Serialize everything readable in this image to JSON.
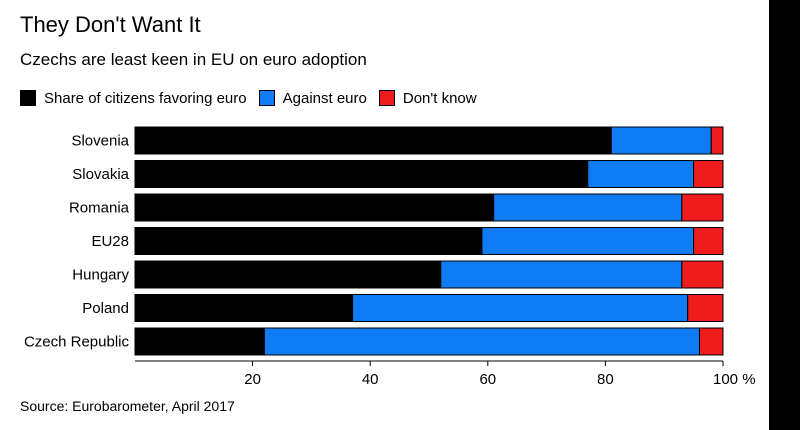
{
  "chart_data": {
    "type": "bar",
    "orientation": "horizontal",
    "stacked": true,
    "title": "They Don't Want It",
    "subtitle": "Czechs are least keen in EU on euro adoption",
    "categories": [
      "Slovenia",
      "Slovakia",
      "Romania",
      "EU28",
      "Hungary",
      "Poland",
      "Czech Republic"
    ],
    "series": [
      {
        "name": "Share of citizens favoring euro",
        "color": "#000000",
        "values": [
          81,
          77,
          61,
          59,
          52,
          37,
          22
        ]
      },
      {
        "name": "Against euro",
        "color": "#0f7cf4",
        "values": [
          17,
          18,
          32,
          36,
          41,
          57,
          74
        ]
      },
      {
        "name": "Don't know",
        "color": "#ee1c1c",
        "values": [
          2,
          5,
          7,
          5,
          7,
          6,
          4
        ]
      }
    ],
    "xlim": [
      0,
      100
    ],
    "xticks": [
      20,
      40,
      60,
      80,
      100
    ],
    "xtick_labels": [
      "20",
      "40",
      "60",
      "80",
      "100 %"
    ],
    "xlabel": "",
    "ylabel": "",
    "source": "Source: Eurobarometer, April 2017"
  }
}
